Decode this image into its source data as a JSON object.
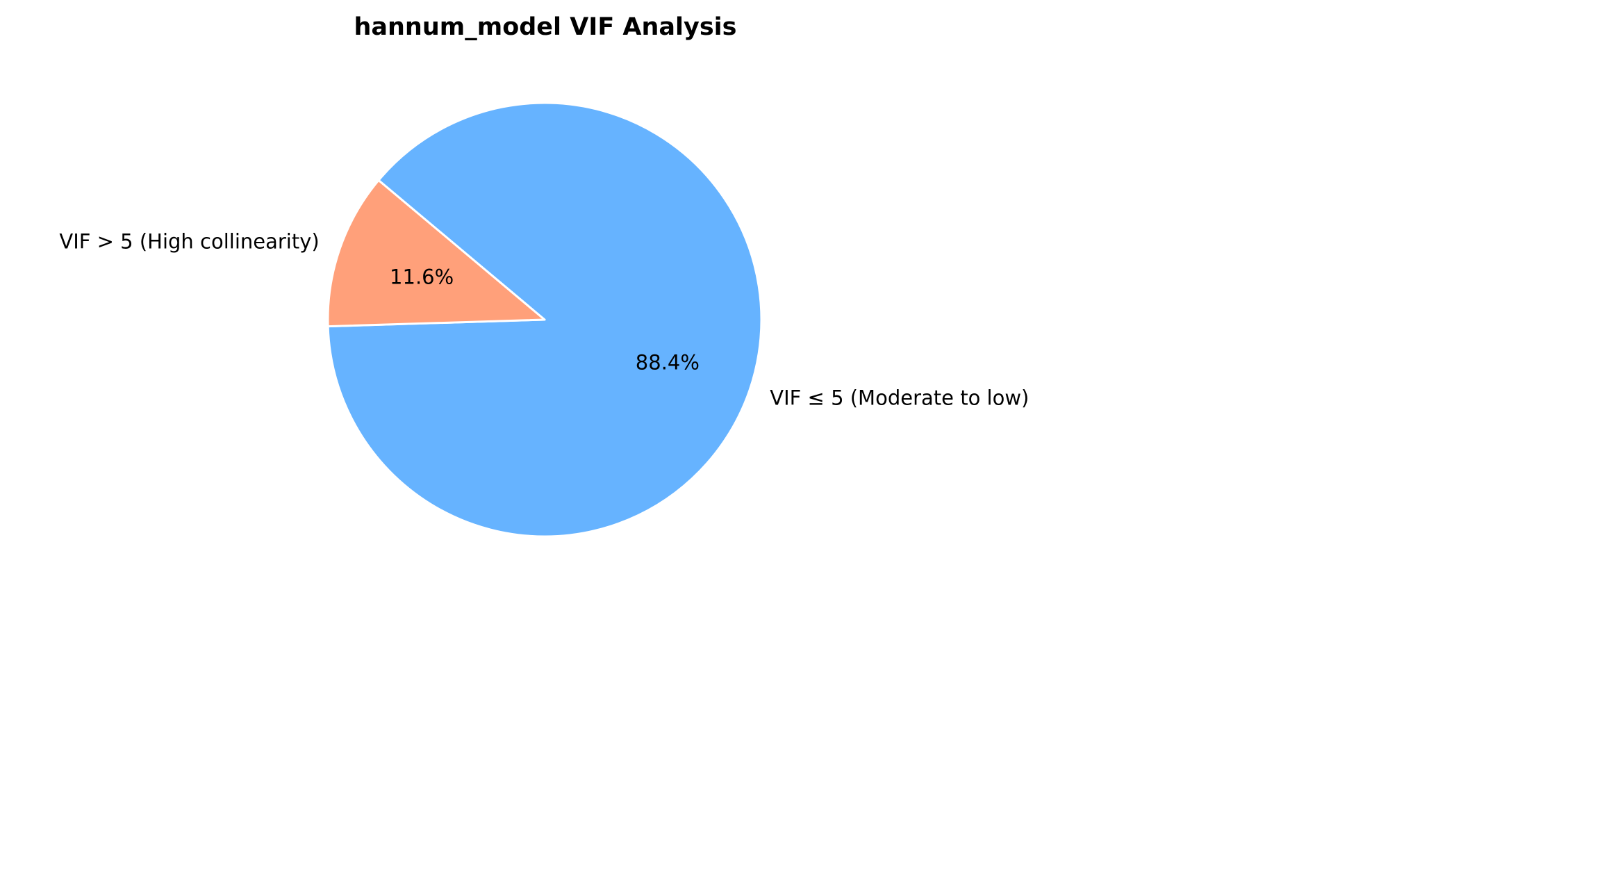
{
  "chart_data": {
    "type": "pie",
    "title": "hannum_model VIF Analysis",
    "slices": [
      {
        "label": "VIF ≤ 5 (Moderate to low)",
        "value": 88.4,
        "pct_label": "88.4%",
        "color": "#66b3ff"
      },
      {
        "label": "VIF > 5 (High collinearity)",
        "value": 11.6,
        "pct_label": "11.6%",
        "color": "#ffa07a"
      }
    ],
    "edge_color": "#ffffff"
  }
}
